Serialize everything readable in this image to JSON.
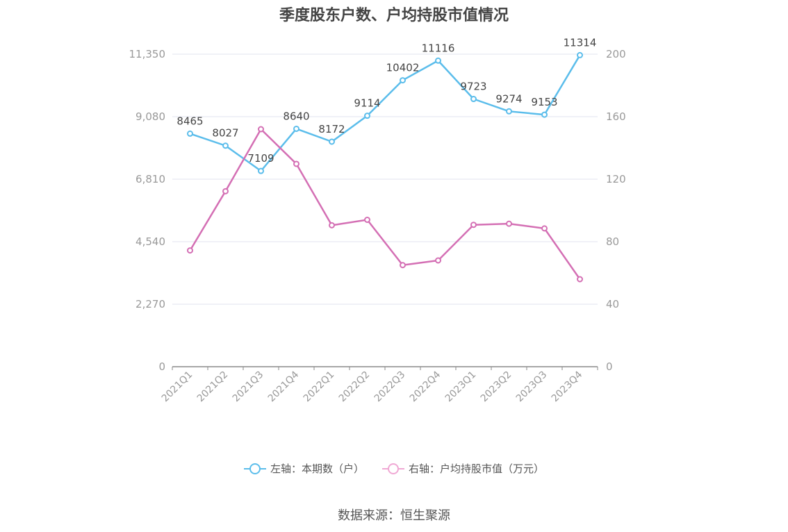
{
  "title": "季度股东户数、户均持股市值情况",
  "source": "数据来源：恒生聚源",
  "chart_data": {
    "type": "line",
    "categories": [
      "2021Q1",
      "2021Q2",
      "2021Q3",
      "2021Q4",
      "2022Q1",
      "2022Q2",
      "2022Q3",
      "2022Q4",
      "2023Q1",
      "2023Q2",
      "2023Q3",
      "2023Q4"
    ],
    "left_axis": {
      "ylim": [
        0,
        11350
      ],
      "ticks": [
        "0",
        "2,270",
        "4,540",
        "6,810",
        "9,080",
        "11,350"
      ],
      "tick_values": [
        0,
        2270,
        4540,
        6810,
        9080,
        11350
      ]
    },
    "right_axis": {
      "ylim": [
        0,
        200
      ],
      "ticks": [
        "0",
        "40",
        "80",
        "120",
        "160",
        "200"
      ],
      "tick_values": [
        0,
        40,
        80,
        120,
        160,
        200
      ]
    },
    "series": [
      {
        "name": "左轴：本期数（户）",
        "axis": "left",
        "color": "#5bbdeb",
        "show_labels": true,
        "values": [
          8465,
          8027,
          7109,
          8640,
          8172,
          9114,
          10402,
          11116,
          9723,
          9274,
          9153,
          11314
        ]
      },
      {
        "name": "右轴：户均持股市值（万元）",
        "axis": "right",
        "color": "#d46fb4",
        "legend_color": "#f0a8d4",
        "show_labels": false,
        "values": [
          74.4,
          112.3,
          152.0,
          129.8,
          90.5,
          94.0,
          65.0,
          68.0,
          90.8,
          91.5,
          88.5,
          56.0
        ]
      }
    ],
    "grid": true,
    "legend_position": "bottom-center"
  }
}
